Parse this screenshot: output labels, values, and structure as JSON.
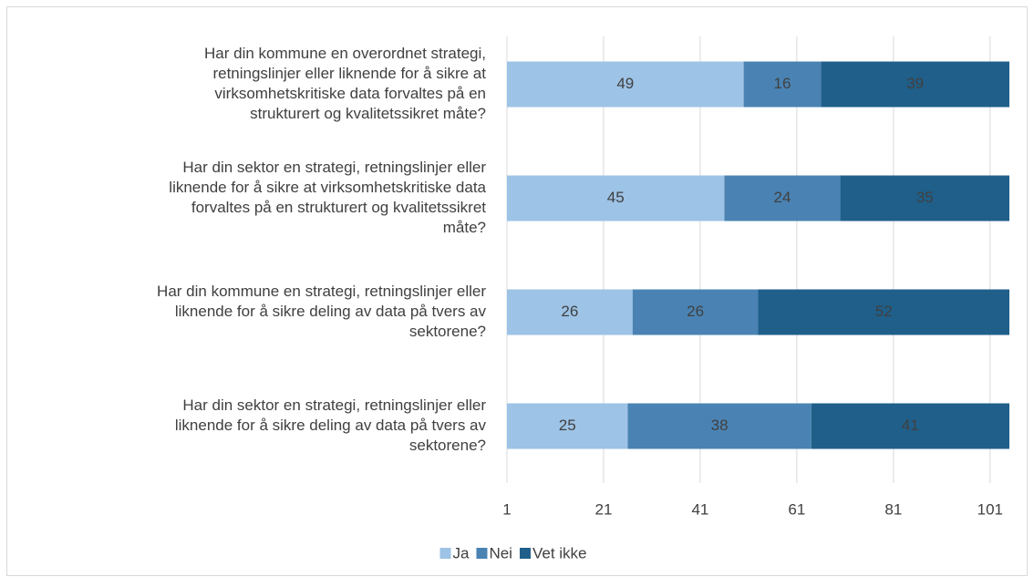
{
  "chart_data": {
    "type": "stacked-bar-horizontal",
    "categories": [
      [
        "Har din kommune en overordnet strategi,",
        "retningslinjer eller liknende for å sikre at",
        "virksomhetskritiske data forvaltes på en",
        "strukturert og kvalitetssikret måte?"
      ],
      [
        "Har din sektor en strategi, retningslinjer eller",
        "liknende for å sikre at virksomhetskritiske data",
        "forvaltes på en strukturert og kvalitetssikret",
        "måte?"
      ],
      [
        "Har din kommune en strategi, retningslinjer eller",
        "liknende for å sikre deling av data på tvers av",
        "sektorene?"
      ],
      [
        "Har din sektor en strategi, retningslinjer eller",
        "liknende for å sikre deling av data på tvers av",
        "sektorene?"
      ]
    ],
    "series": [
      {
        "name": "Ja",
        "color": "#9dc3e6",
        "values": [
          49,
          45,
          26,
          25
        ]
      },
      {
        "name": "Nei",
        "color": "#4a83b3",
        "values": [
          16,
          24,
          26,
          38
        ]
      },
      {
        "name": "Vet ikke",
        "color": "#1f5f8a",
        "values": [
          39,
          35,
          52,
          41
        ]
      }
    ],
    "xlim": [
      1,
      105
    ],
    "xticks": [
      1,
      21,
      41,
      61,
      81,
      101
    ],
    "grid": true,
    "legend": "bottom"
  }
}
